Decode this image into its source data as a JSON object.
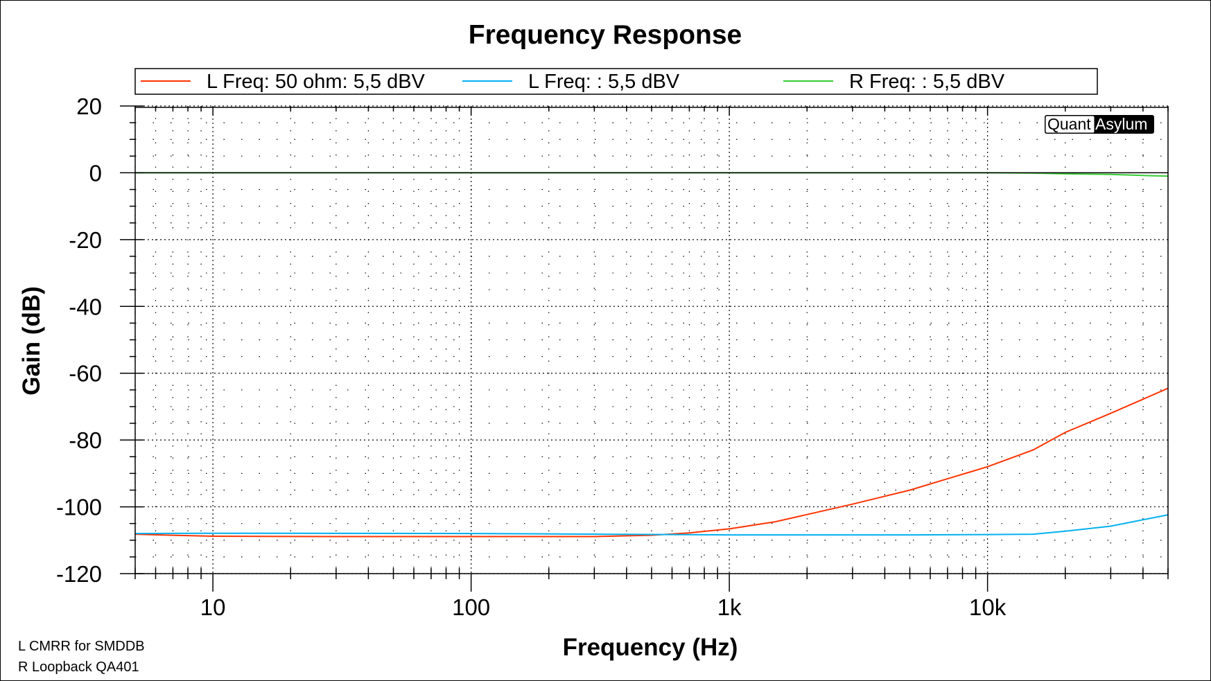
{
  "chart_data": {
    "type": "line",
    "title": "Frequency Response",
    "xlabel": "Frequency (Hz)",
    "ylabel": "Gain (dB)",
    "xscale": "log",
    "xlim": [
      5,
      50000
    ],
    "ylim": [
      -120,
      20
    ],
    "grid": true,
    "legend_placement": "top",
    "x_tick_labels": [
      {
        "value": 10,
        "label": "10"
      },
      {
        "value": 100,
        "label": "100"
      },
      {
        "value": 1000,
        "label": "1k"
      },
      {
        "value": 10000,
        "label": "10k"
      }
    ],
    "y_tick_labels": [
      {
        "value": 20,
        "label": "20"
      },
      {
        "value": 0,
        "label": "0"
      },
      {
        "value": -20,
        "label": "-20"
      },
      {
        "value": -40,
        "label": "-40"
      },
      {
        "value": -60,
        "label": "-60"
      },
      {
        "value": -80,
        "label": "-80"
      },
      {
        "value": -100,
        "label": "-100"
      },
      {
        "value": -120,
        "label": "-120"
      }
    ],
    "series": [
      {
        "name": "L Freq: 50 ohm: 5,5 dBV",
        "color": "#ff3300",
        "x": [
          5,
          7,
          10,
          30,
          100,
          300,
          500,
          700,
          1000,
          1500,
          2000,
          3000,
          5000,
          7000,
          10000,
          15000,
          20000,
          30000,
          50000
        ],
        "y": [
          -108.2,
          -108.5,
          -108.8,
          -108.9,
          -108.9,
          -108.9,
          -108.5,
          -107.8,
          -106.6,
          -104.5,
          -102.3,
          -99.2,
          -95,
          -91.6,
          -88,
          -83,
          -77.7,
          -72,
          -64.5
        ]
      },
      {
        "name": "L Freq: : 5,5 dBV",
        "color": "#00b0f0",
        "x": [
          5,
          10,
          100,
          1000,
          5000,
          10000,
          15000,
          20000,
          30000,
          50000
        ],
        "y": [
          -108,
          -107.9,
          -108,
          -108.4,
          -108.4,
          -108.3,
          -108.2,
          -107.3,
          -105.8,
          -102.4
        ]
      },
      {
        "name": "R Freq: : 5,5 dBV",
        "color": "#33cc33",
        "x": [
          5,
          100,
          1000,
          10000,
          15000,
          20000,
          30000,
          40000,
          50000
        ],
        "y": [
          0,
          0,
          0,
          0,
          -0.1,
          -0.3,
          -0.5,
          -0.8,
          -1.0
        ]
      }
    ],
    "watermark": {
      "part1": "Quant",
      "part2": "Asylum"
    },
    "notes": [
      "L CMRR for SMDDB",
      "R Loopback QA401"
    ]
  }
}
